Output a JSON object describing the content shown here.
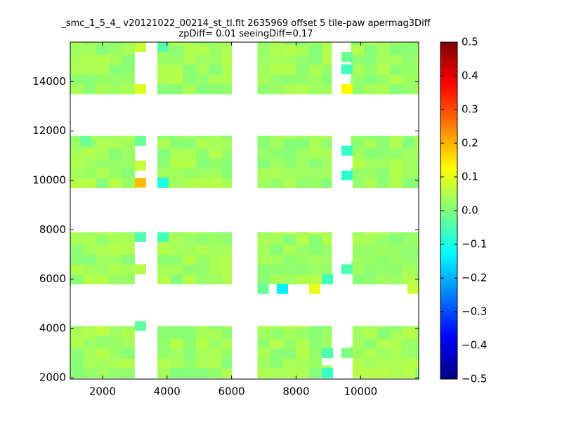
{
  "chart_data": {
    "type": "heatmap",
    "title": "_smc_1_5_4_ v20121022_00214_st_tl.fit 2635969 offset 5 tile-paw apermag3Diff",
    "subtitle": "zpDiff= 0.01 seeingDiff=0.17",
    "xlim": [
      1000,
      11800
    ],
    "ylim": [
      1950,
      15600
    ],
    "xticks": [
      2000,
      4000,
      6000,
      8000,
      10000
    ],
    "yticks": [
      2000,
      4000,
      6000,
      8000,
      10000,
      12000,
      14000
    ],
    "xticklabels": [
      "2000",
      "4000",
      "6000",
      "8000",
      "10000"
    ],
    "yticklabels": [
      "2000",
      "4000",
      "6000",
      "8000",
      "10000",
      "12000",
      "14000"
    ],
    "colorbar": {
      "min": -0.5,
      "max": 0.5,
      "colormap": "jet",
      "ticks": [
        0.5,
        0.4,
        0.3,
        0.2,
        0.1,
        0.0,
        -0.1,
        -0.2,
        -0.3,
        -0.4,
        -0.5
      ],
      "ticklabels": [
        "0.5",
        "0.4",
        "0.3",
        "0.2",
        "0.1",
        "0.0",
        "−0.1",
        "−0.2",
        "−0.3",
        "−0.4",
        "−0.5"
      ]
    },
    "cell_size": [
      400,
      400
    ],
    "detector_columns": [
      {
        "x": [
          1000,
          3000
        ]
      },
      {
        "x": [
          3700,
          6000
        ]
      },
      {
        "x": [
          6800,
          9100
        ]
      },
      {
        "x": [
          9700,
          11800
        ]
      }
    ],
    "detector_rows": [
      {
        "y": [
          2000,
          4100
        ]
      },
      {
        "y": [
          5800,
          7900
        ]
      },
      {
        "y": [
          9700,
          11800
        ]
      },
      {
        "y": [
          13500,
          15600
        ]
      }
    ],
    "base_value": 0.03,
    "patches": [
      {
        "x": 3000,
        "y": 15200,
        "w": 350,
        "h": 400,
        "value": 0.07
      },
      {
        "x": 3000,
        "y": 13500,
        "w": 350,
        "h": 400,
        "value": 0.09
      },
      {
        "x": 3700,
        "y": 15200,
        "w": 350,
        "h": 400,
        "value": -0.04
      },
      {
        "x": 9400,
        "y": 13500,
        "w": 350,
        "h": 400,
        "value": 0.13
      },
      {
        "x": 9400,
        "y": 14300,
        "w": 350,
        "h": 400,
        "value": -0.06
      },
      {
        "x": 9400,
        "y": 14800,
        "w": 350,
        "h": 400,
        "value": -0.02
      },
      {
        "x": 3000,
        "y": 11400,
        "w": 350,
        "h": 400,
        "value": -0.02
      },
      {
        "x": 3000,
        "y": 10400,
        "w": 350,
        "h": 400,
        "value": 0.07
      },
      {
        "x": 3000,
        "y": 9700,
        "w": 350,
        "h": 400,
        "value": 0.19
      },
      {
        "x": 3700,
        "y": 9700,
        "w": 350,
        "h": 400,
        "value": -0.1
      },
      {
        "x": 9400,
        "y": 11000,
        "w": 350,
        "h": 400,
        "value": -0.07
      },
      {
        "x": 9400,
        "y": 10000,
        "w": 350,
        "h": 400,
        "value": -0.08
      },
      {
        "x": 1300,
        "y": 11400,
        "w": 350,
        "h": 400,
        "value": -0.02
      },
      {
        "x": 3000,
        "y": 7500,
        "w": 350,
        "h": 400,
        "value": -0.05
      },
      {
        "x": 3700,
        "y": 7500,
        "w": 350,
        "h": 400,
        "value": -0.06
      },
      {
        "x": 3000,
        "y": 6200,
        "w": 350,
        "h": 400,
        "value": 0.05
      },
      {
        "x": 9400,
        "y": 6200,
        "w": 350,
        "h": 400,
        "value": -0.05
      },
      {
        "x": 8800,
        "y": 5800,
        "w": 350,
        "h": 400,
        "value": -0.06
      },
      {
        "x": 6800,
        "y": 5400,
        "w": 350,
        "h": 400,
        "value": -0.02
      },
      {
        "x": 7400,
        "y": 5400,
        "w": 350,
        "h": 400,
        "value": -0.14
      },
      {
        "x": 8400,
        "y": 5400,
        "w": 350,
        "h": 400,
        "value": 0.1
      },
      {
        "x": 11450,
        "y": 5400,
        "w": 350,
        "h": 400,
        "value": 0.07
      },
      {
        "x": 3000,
        "y": 3900,
        "w": 350,
        "h": 400,
        "value": -0.03
      },
      {
        "x": 1800,
        "y": 3700,
        "w": 400,
        "h": 400,
        "value": 0.06
      },
      {
        "x": 8800,
        "y": 2800,
        "w": 350,
        "h": 400,
        "value": -0.05
      },
      {
        "x": 8800,
        "y": 2000,
        "w": 350,
        "h": 400,
        "value": -0.07
      },
      {
        "x": 9400,
        "y": 2800,
        "w": 350,
        "h": 400,
        "value": 0.0
      }
    ],
    "holes": [
      {
        "x": 3000,
        "y": 13900,
        "w": 350,
        "h": 1300
      },
      {
        "x": 3000,
        "y": 9700,
        "w": 0,
        "h": 0
      },
      {
        "x": 9400,
        "y": 10500,
        "w": 350,
        "h": 500
      },
      {
        "x": 9400,
        "y": 9700,
        "w": 350,
        "h": 300
      },
      {
        "x": 9400,
        "y": 11800,
        "w": 0,
        "h": 0
      },
      {
        "x": 3000,
        "y": 6700,
        "w": 350,
        "h": 800
      },
      {
        "x": 3000,
        "y": 5800,
        "w": 350,
        "h": 400
      },
      {
        "x": 9400,
        "y": 5800,
        "w": 350,
        "h": 400
      },
      {
        "x": 9400,
        "y": 6700,
        "w": 350,
        "h": 1200
      },
      {
        "x": 3000,
        "y": 2000,
        "w": 350,
        "h": 1900
      },
      {
        "x": 9400,
        "y": 3300,
        "w": 350,
        "h": 800
      },
      {
        "x": 8800,
        "y": 2500,
        "w": 350,
        "h": 300
      },
      {
        "x": 9400,
        "y": 2000,
        "w": 350,
        "h": 800
      }
    ]
  }
}
